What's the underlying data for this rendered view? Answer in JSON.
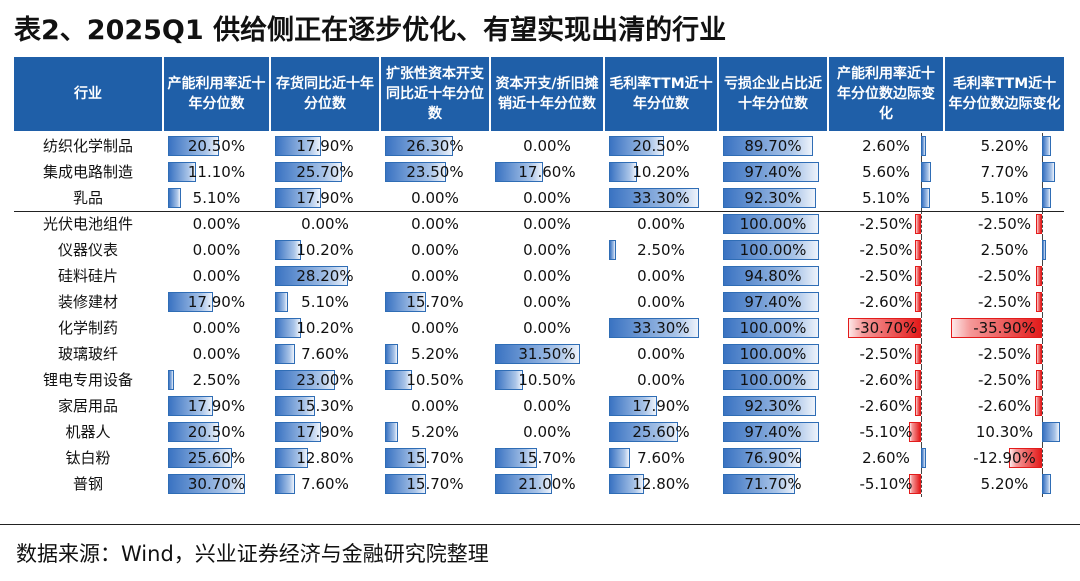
{
  "title": "表2、2025Q1 供给侧正在逐步优化、有望实现出清的行业",
  "source": "数据来源：Wind，兴业证券经济与金融研究院整理",
  "colors": {
    "header_bg": "#1f5fa8",
    "bar_blue": "#3a73c2",
    "bar_red": "#e31b1b"
  },
  "table": {
    "headers": [
      "行业",
      "产能利用率近十年分位数",
      "存货同比近十年分位数",
      "扩张性资本开支同比近十年分位数",
      "资本开支/折旧摊销近十年分位数",
      "毛利率TTM近十年分位数",
      "亏损企业占比近十年分位数",
      "产能利用率近十年分位数边际变化",
      "毛利率TTM近十年分位数边际变化"
    ],
    "rows": [
      {
        "name": "纺织化学制品",
        "v": [
          "20.50%",
          "17.90%",
          "26.30%",
          "0.00%",
          "20.50%",
          "89.70%",
          "2.60%",
          "5.20%"
        ],
        "n": [
          20.5,
          17.9,
          26.3,
          0,
          20.5,
          89.7,
          2.6,
          5.2
        ]
      },
      {
        "name": "集成电路制造",
        "v": [
          "11.10%",
          "25.70%",
          "23.50%",
          "17.60%",
          "10.20%",
          "97.40%",
          "5.60%",
          "7.70%"
        ],
        "n": [
          11.1,
          25.7,
          23.5,
          17.6,
          10.2,
          97.4,
          5.6,
          7.7
        ]
      },
      {
        "name": "乳品",
        "v": [
          "5.10%",
          "17.90%",
          "0.00%",
          "0.00%",
          "33.30%",
          "92.30%",
          "5.10%",
          "5.10%"
        ],
        "n": [
          5.1,
          17.9,
          0,
          0,
          33.3,
          92.3,
          5.1,
          5.1
        ]
      },
      {
        "name": "光伏电池组件",
        "v": [
          "0.00%",
          "0.00%",
          "0.00%",
          "0.00%",
          "0.00%",
          "100.00%",
          "-2.50%",
          "-2.50%"
        ],
        "n": [
          0,
          0,
          0,
          0,
          0,
          100,
          -2.5,
          -2.5
        ]
      },
      {
        "name": "仪器仪表",
        "v": [
          "0.00%",
          "10.20%",
          "0.00%",
          "0.00%",
          "2.50%",
          "100.00%",
          "-2.50%",
          "2.50%"
        ],
        "n": [
          0,
          10.2,
          0,
          0,
          2.5,
          100,
          -2.5,
          2.5
        ]
      },
      {
        "name": "硅料硅片",
        "v": [
          "0.00%",
          "28.20%",
          "0.00%",
          "0.00%",
          "0.00%",
          "94.80%",
          "-2.50%",
          "-2.50%"
        ],
        "n": [
          0,
          28.2,
          0,
          0,
          0,
          94.8,
          -2.5,
          -2.5
        ]
      },
      {
        "name": "装修建材",
        "v": [
          "17.90%",
          "5.10%",
          "15.70%",
          "0.00%",
          "0.00%",
          "97.40%",
          "-2.60%",
          "-2.50%"
        ],
        "n": [
          17.9,
          5.1,
          15.7,
          0,
          0,
          97.4,
          -2.6,
          -2.5
        ]
      },
      {
        "name": "化学制药",
        "v": [
          "0.00%",
          "10.20%",
          "0.00%",
          "0.00%",
          "33.30%",
          "100.00%",
          "-30.70%",
          "-35.90%"
        ],
        "n": [
          0,
          10.2,
          0,
          0,
          33.3,
          100,
          -30.7,
          -35.9
        ]
      },
      {
        "name": "玻璃玻纤",
        "v": [
          "0.00%",
          "7.60%",
          "5.20%",
          "31.50%",
          "0.00%",
          "100.00%",
          "-2.50%",
          "-2.50%"
        ],
        "n": [
          0,
          7.6,
          5.2,
          31.5,
          0,
          100,
          -2.5,
          -2.5
        ]
      },
      {
        "name": "锂电专用设备",
        "v": [
          "2.50%",
          "23.00%",
          "10.50%",
          "10.50%",
          "0.00%",
          "100.00%",
          "-2.60%",
          "-2.50%"
        ],
        "n": [
          2.5,
          23,
          10.5,
          10.5,
          0,
          100,
          -2.6,
          -2.5
        ]
      },
      {
        "name": "家居用品",
        "v": [
          "17.90%",
          "15.30%",
          "0.00%",
          "0.00%",
          "17.90%",
          "92.30%",
          "-2.60%",
          "-2.60%"
        ],
        "n": [
          17.9,
          15.3,
          0,
          0,
          17.9,
          92.3,
          -2.6,
          -2.6
        ]
      },
      {
        "name": "机器人",
        "v": [
          "20.50%",
          "17.90%",
          "5.20%",
          "0.00%",
          "25.60%",
          "97.40%",
          "-5.10%",
          "10.30%"
        ],
        "n": [
          20.5,
          17.9,
          5.2,
          0,
          25.6,
          97.4,
          -5.1,
          10.3
        ]
      },
      {
        "name": "钛白粉",
        "v": [
          "25.60%",
          "12.80%",
          "15.70%",
          "15.70%",
          "7.60%",
          "76.90%",
          "2.60%",
          "-12.90%"
        ],
        "n": [
          25.6,
          12.8,
          15.7,
          15.7,
          7.6,
          76.9,
          2.6,
          -12.9
        ]
      },
      {
        "name": "普钢",
        "v": [
          "30.70%",
          "7.60%",
          "15.70%",
          "21.00%",
          "12.80%",
          "71.70%",
          "-5.10%",
          "5.20%"
        ],
        "n": [
          30.7,
          7.6,
          15.7,
          21,
          12.8,
          71.7,
          -5.1,
          5.2
        ]
      }
    ]
  }
}
